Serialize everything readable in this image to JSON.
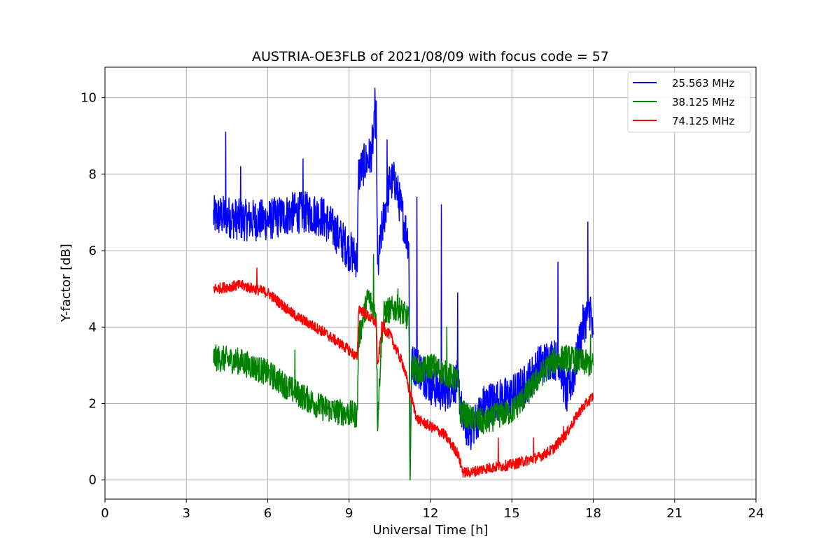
{
  "chart_data": {
    "type": "line",
    "title": "AUSTRIA-OE3FLB of 2021/08/09 with focus code = 57",
    "xlabel": "Universal Time [h]",
    "ylabel": "Y-factor [dB]",
    "xlim": [
      0,
      24
    ],
    "ylim": [
      -0.5,
      10.8
    ],
    "xticks": [
      0,
      3,
      6,
      9,
      12,
      15,
      18,
      21,
      24
    ],
    "yticks": [
      0,
      2,
      4,
      6,
      8,
      10
    ],
    "xtick_labels": [
      "0",
      "3",
      "6",
      "9",
      "12",
      "15",
      "18",
      "21",
      "24"
    ],
    "ytick_labels": [
      "0",
      "2",
      "4",
      "6",
      "8",
      "10"
    ],
    "grid": true,
    "legend_position": "top-right",
    "series": [
      {
        "name": "25.563 MHz",
        "color": "#0000ff",
        "noise": 0.55,
        "x": [
          4.0,
          4.5,
          5.0,
          6.0,
          7.0,
          7.5,
          8.0,
          8.5,
          9.0,
          9.3,
          9.35,
          9.5,
          9.8,
          10.0,
          10.05,
          10.2,
          10.5,
          10.7,
          11.0,
          11.2,
          11.25,
          11.3,
          11.5,
          12.0,
          12.5,
          13.0,
          13.2,
          13.5,
          14.0,
          14.5,
          15.0,
          15.5,
          16.0,
          16.5,
          16.8,
          17.0,
          17.3,
          17.6,
          17.9,
          18.0
        ],
        "y": [
          6.9,
          6.9,
          6.8,
          6.8,
          7.0,
          7.0,
          6.9,
          6.5,
          6.0,
          5.8,
          8.0,
          8.2,
          8.5,
          9.5,
          5.5,
          6.5,
          7.8,
          7.8,
          6.8,
          6.2,
          0.0,
          3.0,
          3.0,
          2.5,
          2.3,
          2.6,
          1.5,
          1.3,
          2.0,
          2.1,
          2.2,
          2.5,
          3.0,
          3.2,
          3.0,
          2.2,
          2.8,
          4.0,
          4.5,
          3.5
        ],
        "spikes": [
          [
            4.45,
            9.1
          ],
          [
            5.0,
            8.2
          ],
          [
            7.3,
            8.4
          ],
          [
            9.95,
            10.25
          ],
          [
            10.4,
            8.9
          ],
          [
            11.5,
            7.4
          ],
          [
            12.4,
            7.2
          ],
          [
            13.0,
            4.9
          ],
          [
            16.7,
            5.7
          ],
          [
            17.8,
            6.75
          ]
        ]
      },
      {
        "name": "38.125 MHz",
        "color": "#008000",
        "noise": 0.35,
        "x": [
          4.0,
          5.0,
          6.0,
          7.0,
          8.0,
          8.5,
          9.3,
          9.35,
          9.7,
          10.0,
          10.05,
          10.2,
          10.3,
          10.8,
          11.2,
          11.25,
          11.3,
          11.6,
          12.0,
          12.5,
          13.0,
          13.1,
          13.5,
          14.0,
          14.5,
          15.0,
          15.5,
          16.0,
          16.5,
          17.0,
          17.5,
          18.0
        ],
        "y": [
          3.2,
          3.1,
          2.8,
          2.3,
          1.9,
          1.8,
          1.7,
          3.7,
          4.8,
          4.3,
          1.5,
          3.8,
          4.4,
          4.5,
          4.2,
          0.0,
          3.0,
          2.8,
          3.0,
          2.8,
          2.6,
          1.8,
          1.6,
          1.5,
          1.7,
          1.8,
          2.2,
          2.7,
          3.1,
          3.2,
          3.1,
          3.0
        ],
        "spikes": [
          [
            7.0,
            3.4
          ],
          [
            9.9,
            5.9
          ],
          [
            10.8,
            5.0
          ],
          [
            12.6,
            4.0
          ],
          [
            17.9,
            3.8
          ]
        ]
      },
      {
        "name": "74.125 MHz",
        "color": "#ff0000",
        "noise": 0.14,
        "x": [
          4.0,
          5.0,
          6.0,
          7.0,
          8.0,
          9.0,
          9.3,
          9.35,
          10.0,
          10.05,
          10.2,
          10.5,
          11.0,
          11.2,
          11.5,
          12.0,
          12.5,
          13.0,
          13.2,
          13.5,
          14.0,
          15.0,
          16.0,
          16.5,
          17.0,
          17.5,
          18.0
        ],
        "y": [
          5.0,
          5.1,
          4.9,
          4.3,
          3.9,
          3.4,
          3.2,
          4.5,
          4.1,
          2.9,
          4.0,
          3.8,
          3.0,
          2.4,
          1.6,
          1.4,
          1.2,
          0.7,
          0.2,
          0.2,
          0.3,
          0.4,
          0.6,
          0.8,
          1.2,
          1.8,
          2.2
        ],
        "spikes": [
          [
            5.6,
            5.55
          ],
          [
            10.3,
            4.2
          ],
          [
            14.5,
            1.1
          ],
          [
            15.8,
            1.1
          ],
          [
            16.9,
            1.4
          ]
        ]
      }
    ]
  }
}
